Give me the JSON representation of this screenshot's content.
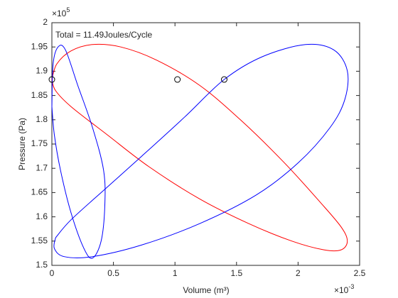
{
  "chart_data": {
    "type": "line",
    "xlabel": "Volume (m³)",
    "ylabel": "Pressure (Pa)",
    "x_exponent": {
      "base": "×10",
      "power": "-3"
    },
    "y_exponent": {
      "base": "×10",
      "power": "5"
    },
    "annotation": "Total = 11.49Joules/Cycle",
    "xlim": [
      0,
      0.0025
    ],
    "xticks": [
      0,
      {
        "value": 0.0005,
        "label": "0.5"
      },
      {
        "value": 0.001,
        "label": "1"
      },
      {
        "value": 0.0015,
        "label": "1.5"
      },
      {
        "value": 0.002,
        "label": "2"
      },
      {
        "value": 0.0025,
        "label": "2.5"
      }
    ],
    "ylim": [
      150000,
      200000
    ],
    "yticks": [
      {
        "value": 150000,
        "label": "1.5"
      },
      {
        "value": 155000,
        "label": "1.55"
      },
      {
        "value": 160000,
        "label": "1.6"
      },
      {
        "value": 165000,
        "label": "1.65"
      },
      {
        "value": 170000,
        "label": "1.7"
      },
      {
        "value": 175000,
        "label": "1.75"
      },
      {
        "value": 180000,
        "label": "1.8"
      },
      {
        "value": 185000,
        "label": "1.85"
      },
      {
        "value": 190000,
        "label": "1.9"
      },
      {
        "value": 195000,
        "label": "1.95"
      },
      {
        "value": 200000,
        "label": "2"
      }
    ],
    "grid": false,
    "series": [
      {
        "color": "#ff0000",
        "x": [
          0,
          4e-05,
          0.000156,
          0.00033,
          0.00056,
          0.00085,
          0.0012,
          0.00154,
          0.00189,
          0.00218,
          0.00235,
          0.0024,
          0.00235,
          0.00221,
          0.00195,
          0.0016,
          0.0012,
          0.00079,
          0.00045,
          0.000156,
          3e-05,
          0
        ],
        "y": [
          188300,
          191500,
          194200,
          195500,
          195000,
          192300,
          187100,
          179800,
          171100,
          163000,
          157900,
          155000,
          153200,
          153200,
          155000,
          158600,
          163700,
          170300,
          176900,
          182700,
          186000,
          188300
        ]
      },
      {
        "color": "#0000ff",
        "x": [
          3e-05,
          0.000156,
          0.00044,
          0.00073,
          0.00108,
          0.0014,
          0.00171,
          0.00206,
          0.00229,
          0.0024,
          0.00238,
          0.00226,
          0.002,
          0.00166,
          0.0012,
          0.00073,
          0.00033,
          0.0001,
          2e-05,
          3e-05
        ],
        "y": [
          155700,
          159400,
          165900,
          172500,
          180600,
          188300,
          193000,
          195500,
          194400,
          190100,
          184200,
          178400,
          171100,
          164500,
          158600,
          154200,
          151800,
          151800,
          153500,
          155700
        ]
      },
      {
        "color": "#0000ff",
        "x": [
          0,
          1e-05,
          5e-05,
          0.00011,
          0.00021,
          0.00033,
          0.00042,
          0.00043,
          0.0004,
          0.00033,
          0.00026,
          0.000156,
          7e-05,
          2e-05,
          0
        ],
        "y": [
          182700,
          191500,
          195000,
          194400,
          187100,
          178400,
          169600,
          162300,
          155000,
          151500,
          153500,
          160800,
          169600,
          176900,
          182700
        ]
      }
    ],
    "markers": {
      "x": [
        0,
        0.00102,
        0.0014
      ],
      "y": [
        188300,
        188300,
        188300
      ]
    }
  }
}
